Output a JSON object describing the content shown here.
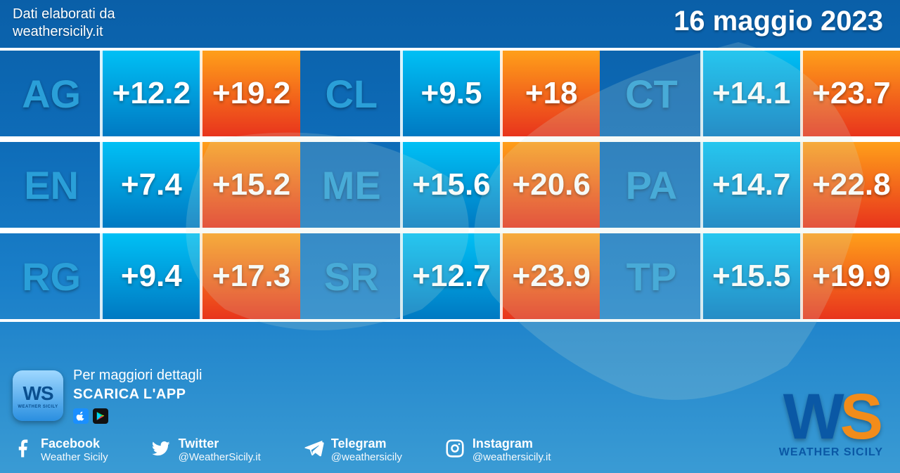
{
  "header": {
    "attribution_line1": "Dati elaborati da",
    "attribution_line2": "weathersicily.it",
    "date": "16 maggio 2023"
  },
  "colors": {
    "low_gradient_top": "#00c0f5",
    "low_gradient_bottom": "#0079c2",
    "high_gradient_top": "#ff9f1a",
    "high_gradient_bottom": "#e8341c",
    "code_text": "#2a9fd8",
    "divider": "#ffffff"
  },
  "provinces": [
    {
      "code": "AG",
      "low": "+12.2",
      "high": "+19.2"
    },
    {
      "code": "CL",
      "low": "+9.5",
      "high": "+18"
    },
    {
      "code": "CT",
      "low": "+14.1",
      "high": "+23.7"
    },
    {
      "code": "EN",
      "low": "+7.4",
      "high": "+15.2"
    },
    {
      "code": "ME",
      "low": "+15.6",
      "high": "+20.6"
    },
    {
      "code": "PA",
      "low": "+14.7",
      "high": "+22.8"
    },
    {
      "code": "RG",
      "low": "+9.4",
      "high": "+17.3"
    },
    {
      "code": "SR",
      "low": "+12.7",
      "high": "+23.9"
    },
    {
      "code": "TP",
      "low": "+15.5",
      "high": "+19.9"
    }
  ],
  "app": {
    "line1": "Per maggiori dettagli",
    "line2": "SCARICA L'APP",
    "icon_letters": "WS",
    "icon_sub": "WEATHER SICILY"
  },
  "socials": [
    {
      "key": "facebook",
      "name": "Facebook",
      "handle": "Weather Sicily"
    },
    {
      "key": "twitter",
      "name": "Twitter",
      "handle": "@WeatherSicily.it"
    },
    {
      "key": "telegram",
      "name": "Telegram",
      "handle": "@weathersicily"
    },
    {
      "key": "instagram",
      "name": "Instagram",
      "handle": "@weathersicily.it"
    }
  ],
  "logo": {
    "letters_w": "W",
    "letters_s": "S",
    "subtitle": "WEATHER SICILY"
  }
}
